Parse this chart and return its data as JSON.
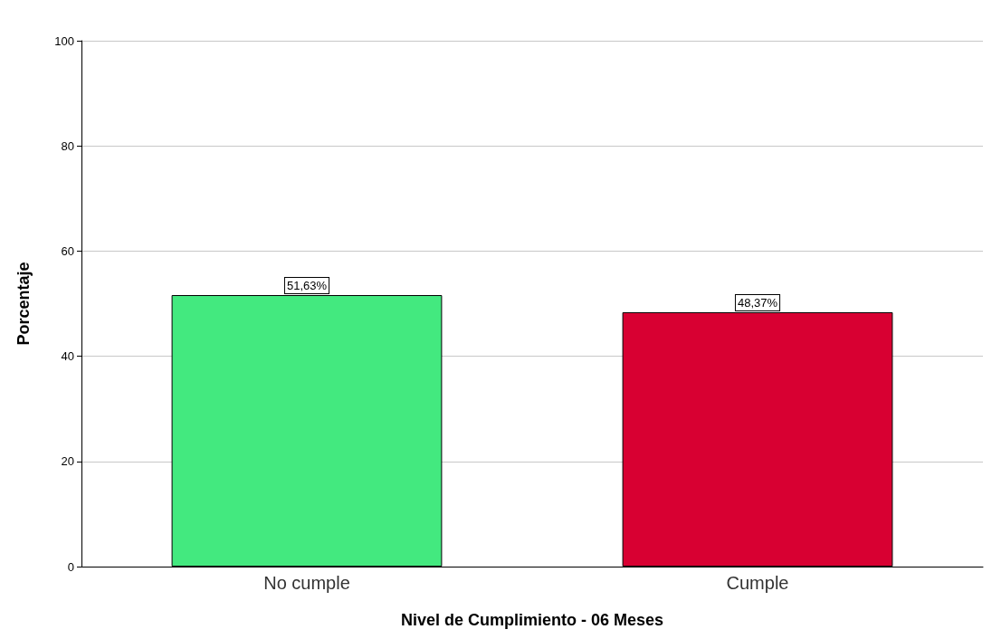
{
  "chart_data": {
    "type": "bar",
    "xlabel": "Nivel de Cumplimiento - 06 Meses",
    "ylabel": "Porcentaje",
    "categories": [
      "No cumple",
      "Cumple"
    ],
    "values": [
      51.63,
      48.37
    ],
    "colors": [
      "#43e97f",
      "#d80032"
    ],
    "value_labels": [
      "51,63%",
      "48,37%"
    ],
    "ylim": [
      0,
      100
    ],
    "yticks": [
      0,
      20,
      40,
      60,
      80,
      100
    ],
    "grid": "y"
  }
}
